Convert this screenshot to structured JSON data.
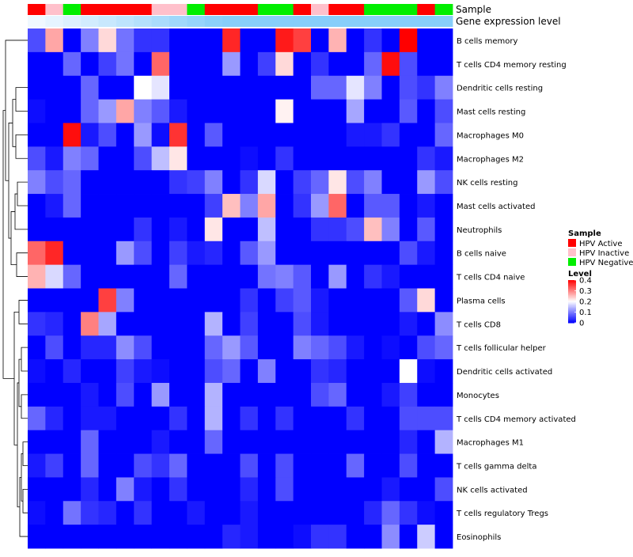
{
  "chart_data": {
    "type": "heatmap",
    "annotation_labels": {
      "sample": "Sample",
      "gene_expression": "Gene expression level"
    },
    "rows": [
      "B cells memory",
      "T cells CD4 memory resting",
      "Dendritic cells resting",
      "Mast cells resting",
      "Macrophages M0",
      "Macrophages M2",
      "NK cells resting",
      "Mast cells activated",
      "Neutrophils",
      "B cells naive",
      "T cells CD4 naive",
      "Plasma cells",
      "T cells CD8",
      "T cells follicular helper",
      "Dendritic cells activated",
      "Monocytes",
      "T cells CD4 memory activated",
      "Macrophages M1",
      "T cells gamma delta",
      "NK cells activated",
      "T cells regulatory  Tregs",
      "Eosinophils"
    ],
    "sample_groups": [
      "Active",
      "Inactive",
      "Negative",
      "Active",
      "Active",
      "Active",
      "Active",
      "Inactive",
      "Inactive",
      "Negative",
      "Active",
      "Active",
      "Active",
      "Negative",
      "Negative",
      "Active",
      "Inactive",
      "Active",
      "Active",
      "Negative",
      "Negative",
      "Negative",
      "Active",
      "Negative"
    ],
    "values": [
      [
        0.06,
        0.27,
        0.0,
        0.1,
        0.23,
        0.09,
        0.04,
        0.04,
        0.0,
        0.0,
        0.0,
        0.37,
        0.0,
        0.0,
        0.38,
        0.35,
        0.0,
        0.26,
        0.0,
        0.04,
        0.0,
        0.4,
        0.0,
        0.0
      ],
      [
        0.0,
        0.0,
        0.08,
        0.0,
        0.05,
        0.09,
        0.0,
        0.32,
        0.0,
        0.0,
        0.0,
        0.12,
        0.0,
        0.05,
        0.23,
        0.0,
        0.04,
        0.0,
        0.0,
        0.08,
        0.39,
        0.06,
        0.0,
        0.0
      ],
      [
        0.0,
        0.0,
        0.0,
        0.08,
        0.0,
        0.0,
        0.2,
        0.18,
        0.0,
        0.0,
        0.0,
        0.0,
        0.0,
        0.0,
        0.0,
        0.0,
        0.08,
        0.08,
        0.18,
        0.1,
        0.0,
        0.06,
        0.04,
        0.1
      ],
      [
        0.01,
        0.0,
        0.0,
        0.08,
        0.12,
        0.27,
        0.1,
        0.07,
        0.02,
        0.0,
        0.0,
        0.0,
        0.0,
        0.0,
        0.21,
        0.0,
        0.0,
        0.0,
        0.13,
        0.0,
        0.0,
        0.07,
        0.0,
        0.06
      ],
      [
        0.0,
        0.0,
        0.39,
        0.02,
        0.06,
        0.0,
        0.12,
        0.01,
        0.36,
        0.0,
        0.07,
        0.0,
        0.0,
        0.0,
        0.0,
        0.0,
        0.0,
        0.0,
        0.02,
        0.02,
        0.04,
        0.0,
        0.0,
        0.08
      ],
      [
        0.06,
        0.02,
        0.1,
        0.08,
        0.0,
        0.0,
        0.06,
        0.15,
        0.22,
        0.0,
        0.0,
        0.0,
        0.01,
        0.0,
        0.04,
        0.0,
        0.0,
        0.0,
        0.0,
        0.0,
        0.0,
        0.0,
        0.04,
        0.02
      ],
      [
        0.1,
        0.06,
        0.08,
        0.0,
        0.0,
        0.0,
        0.0,
        0.0,
        0.04,
        0.05,
        0.1,
        0.0,
        0.04,
        0.17,
        0.0,
        0.05,
        0.08,
        0.22,
        0.06,
        0.1,
        0.0,
        0.0,
        0.12,
        0.06
      ],
      [
        0.0,
        0.02,
        0.08,
        0.0,
        0.0,
        0.0,
        0.0,
        0.0,
        0.0,
        0.0,
        0.05,
        0.25,
        0.1,
        0.27,
        0.0,
        0.04,
        0.12,
        0.32,
        0.0,
        0.07,
        0.07,
        0.0,
        0.02,
        0.0
      ],
      [
        0.0,
        0.0,
        0.0,
        0.0,
        0.0,
        0.0,
        0.04,
        0.0,
        0.02,
        0.0,
        0.22,
        0.0,
        0.0,
        0.15,
        0.0,
        0.0,
        0.04,
        0.04,
        0.06,
        0.25,
        0.1,
        0.0,
        0.07,
        0.0
      ],
      [
        0.32,
        0.37,
        0.0,
        0.0,
        0.0,
        0.12,
        0.06,
        0.0,
        0.05,
        0.02,
        0.03,
        0.0,
        0.07,
        0.12,
        0.0,
        0.0,
        0.0,
        0.0,
        0.0,
        0.0,
        0.0,
        0.06,
        0.02,
        0.0
      ],
      [
        0.26,
        0.17,
        0.08,
        0.0,
        0.0,
        0.0,
        0.0,
        0.0,
        0.08,
        0.0,
        0.0,
        0.0,
        0.0,
        0.09,
        0.1,
        0.07,
        0.0,
        0.12,
        0.0,
        0.04,
        0.02,
        0.0,
        0.0,
        0.0
      ],
      [
        0.0,
        0.0,
        0.0,
        0.0,
        0.35,
        0.1,
        0.0,
        0.0,
        0.0,
        0.0,
        0.0,
        0.0,
        0.04,
        0.0,
        0.05,
        0.07,
        0.02,
        0.0,
        0.0,
        0.0,
        0.0,
        0.07,
        0.23,
        0.0
      ],
      [
        0.04,
        0.03,
        0.0,
        0.3,
        0.13,
        0.0,
        0.0,
        0.0,
        0.0,
        0.0,
        0.14,
        0.0,
        0.05,
        0.0,
        0.0,
        0.06,
        0.02,
        0.0,
        0.0,
        0.0,
        0.0,
        0.02,
        0.0,
        0.11
      ],
      [
        0.0,
        0.06,
        0.0,
        0.03,
        0.03,
        0.11,
        0.06,
        0.0,
        0.0,
        0.0,
        0.08,
        0.12,
        0.07,
        0.0,
        0.0,
        0.1,
        0.08,
        0.06,
        0.02,
        0.0,
        0.01,
        0.0,
        0.06,
        0.08
      ],
      [
        0.01,
        0.0,
        0.03,
        0.0,
        0.0,
        0.05,
        0.02,
        0.01,
        0.0,
        0.0,
        0.06,
        0.08,
        0.0,
        0.1,
        0.0,
        0.0,
        0.04,
        0.03,
        0.0,
        0.0,
        0.0,
        0.2,
        0.01,
        0.0
      ],
      [
        0.0,
        0.0,
        0.0,
        0.02,
        0.0,
        0.06,
        0.0,
        0.12,
        0.0,
        0.0,
        0.14,
        0.0,
        0.0,
        0.0,
        0.0,
        0.0,
        0.06,
        0.08,
        0.0,
        0.0,
        0.02,
        0.05,
        0.0,
        0.0
      ],
      [
        0.08,
        0.03,
        0.0,
        0.02,
        0.02,
        0.0,
        0.0,
        0.0,
        0.04,
        0.0,
        0.14,
        0.0,
        0.04,
        0.0,
        0.04,
        0.0,
        0.0,
        0.0,
        0.04,
        0.0,
        0.0,
        0.06,
        0.06,
        0.06
      ],
      [
        0.0,
        0.0,
        0.0,
        0.08,
        0.0,
        0.0,
        0.0,
        0.02,
        0.0,
        0.0,
        0.08,
        0.0,
        0.0,
        0.0,
        0.0,
        0.0,
        0.0,
        0.0,
        0.0,
        0.0,
        0.0,
        0.03,
        0.0,
        0.14
      ],
      [
        0.02,
        0.05,
        0.0,
        0.08,
        0.0,
        0.0,
        0.06,
        0.04,
        0.08,
        0.0,
        0.0,
        0.0,
        0.06,
        0.0,
        0.06,
        0.0,
        0.0,
        0.0,
        0.08,
        0.0,
        0.0,
        0.06,
        0.0,
        0.0
      ],
      [
        0.0,
        0.0,
        0.0,
        0.03,
        0.0,
        0.1,
        0.02,
        0.0,
        0.04,
        0.0,
        0.0,
        0.0,
        0.03,
        0.0,
        0.06,
        0.0,
        0.0,
        0.0,
        0.0,
        0.0,
        0.02,
        0.0,
        0.0,
        0.06
      ],
      [
        0.01,
        0.0,
        0.09,
        0.04,
        0.03,
        0.0,
        0.04,
        0.0,
        0.0,
        0.02,
        0.0,
        0.0,
        0.02,
        0.0,
        0.0,
        0.0,
        0.0,
        0.0,
        0.0,
        0.03,
        0.08,
        0.04,
        0.01,
        0.0
      ],
      [
        0.0,
        0.0,
        0.0,
        0.0,
        0.0,
        0.0,
        0.0,
        0.0,
        0.0,
        0.0,
        0.0,
        0.03,
        0.02,
        0.0,
        0.0,
        0.01,
        0.04,
        0.04,
        0.0,
        0.0,
        0.11,
        0.0,
        0.16,
        0.0
      ]
    ],
    "legend": {
      "sample_title": "Sample",
      "sample_entries": [
        {
          "key": "Active",
          "label": "HPV Active",
          "color": "#ff0000"
        },
        {
          "key": "Inactive",
          "label": "HPV Inactive",
          "color": "#ffc0cb"
        },
        {
          "key": "Negative",
          "label": "HPV Negative",
          "color": "#00ee00"
        }
      ],
      "level_title": "Level",
      "level_ticks": [
        "0.4",
        "0.3",
        "0.2",
        "0.1",
        "0"
      ],
      "level_tick_values": [
        0.4,
        0.3,
        0.2,
        0.1,
        0
      ]
    },
    "color_scale": {
      "low": "#0000ff",
      "mid": "#ffffff",
      "high": "#ff0000",
      "domain": [
        0,
        0.2,
        0.4
      ]
    },
    "gene_expression_bar_color": "#87cefa"
  }
}
